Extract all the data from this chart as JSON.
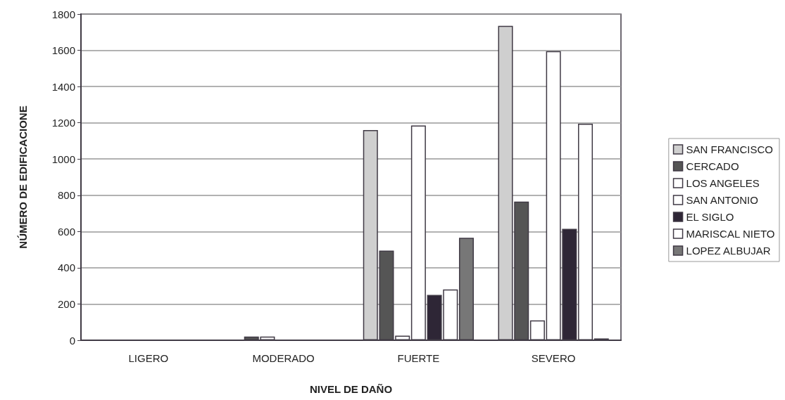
{
  "chart_data": {
    "type": "bar",
    "xlabel": "NIVEL DE DAÑO",
    "ylabel": "NÚMERO DE EDIFICACIONE",
    "categories": [
      "LIGERO",
      "MODERADO",
      "FUERTE",
      "SEVERO"
    ],
    "series": [
      {
        "name": "SAN FRANCISCO",
        "color": "#cfcfcf",
        "values": [
          null,
          null,
          1160,
          1735
        ]
      },
      {
        "name": "CERCADO",
        "color": "#555555",
        "values": [
          null,
          20,
          495,
          765
        ]
      },
      {
        "name": "LOS ANGELES",
        "color": "#ffffff",
        "values": [
          null,
          20,
          25,
          110
        ]
      },
      {
        "name": "SAN ANTONIO",
        "color": "#ffffff",
        "values": [
          null,
          null,
          1185,
          1595
        ]
      },
      {
        "name": "EL SIGLO",
        "color": "#2e2636",
        "values": [
          null,
          null,
          250,
          615
        ]
      },
      {
        "name": "MARISCAL NIETO",
        "color": "#ffffff",
        "values": [
          null,
          null,
          280,
          1195
        ]
      },
      {
        "name": "LOPEZ ALBUJAR",
        "color": "#777777",
        "values": [
          null,
          null,
          565,
          10
        ]
      }
    ],
    "ylim": [
      0,
      1800
    ],
    "yticks": [
      0,
      200,
      400,
      600,
      800,
      1000,
      1200,
      1400,
      1600,
      1800
    ],
    "grid": "y",
    "legend": "right"
  }
}
